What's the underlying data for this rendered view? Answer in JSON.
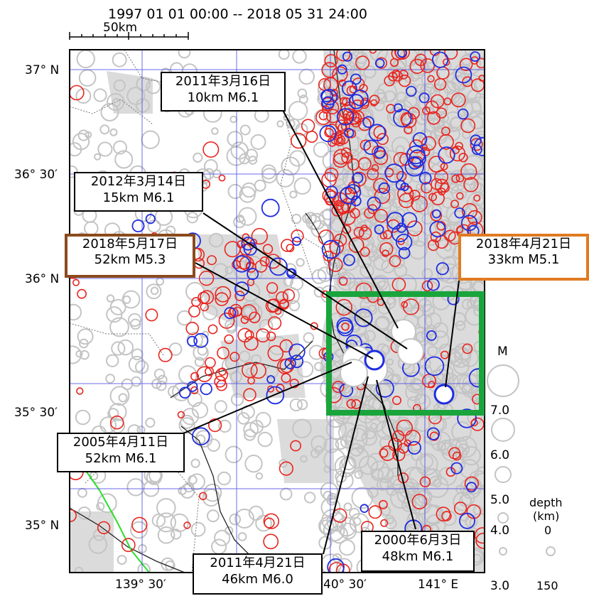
{
  "header": {
    "period": "1997 01 01 00:00 -- 2018 05 31 24:00",
    "scale_label": "50km"
  },
  "axes": {
    "lat_labels": [
      "37° N",
      "36° 30′",
      "36° N",
      "35° 30′",
      "35° N"
    ],
    "lon_labels": [
      "139° 30′",
      "40° 30′",
      "141° E"
    ]
  },
  "legend": {
    "magnitude_title": "M",
    "magnitude_values": [
      "7.0",
      "6.0",
      "5.0",
      "4.0",
      "3.0"
    ],
    "depth_title_line1": "depth",
    "depth_title_line2": "(km)",
    "depth_values": [
      "0",
      "150"
    ]
  },
  "callouts": [
    {
      "id": "eq-2011-03-16",
      "date": "2011年3月16日",
      "detail": "10km  M6.1",
      "style": "normal"
    },
    {
      "id": "eq-2012-03-14",
      "date": "2012年3月14日",
      "detail": "15km  M6.1",
      "style": "normal"
    },
    {
      "id": "eq-2018-05-17",
      "date": "2018年5月17日",
      "detail": "52km  M5.3",
      "style": "brown"
    },
    {
      "id": "eq-2018-04-21",
      "date": "2018年4月21日",
      "detail": "33km  M5.1",
      "style": "orange"
    },
    {
      "id": "eq-2005-04-11",
      "date": "2005年4月11日",
      "detail": "52km  M6.1",
      "style": "normal"
    },
    {
      "id": "eq-2011-04-21",
      "date": "2011年4月21日",
      "detail": "46km  M6.0",
      "style": "normal"
    },
    {
      "id": "eq-2000-06-03",
      "date": "2000年6月3日",
      "detail": "48km  M6.1",
      "style": "normal"
    }
  ],
  "colors": {
    "shallow_event": "#e8251f",
    "deep_event": "#1f2de0",
    "background_event": "#c4c4c4",
    "grid": "#3a3ae8",
    "highlight_box": "#1aa53c",
    "brown_border": "#8b4a1c",
    "orange_border": "#e07b22",
    "fault_line": "#29e029"
  }
}
